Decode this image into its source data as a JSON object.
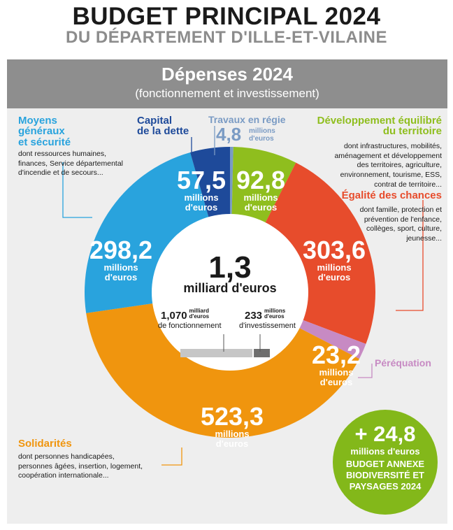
{
  "header": {
    "title": "BUDGET PRINCIPAL 2024",
    "subtitle": "DU DÉPARTEMENT D'ILLE-ET-VILAINE"
  },
  "panel": {
    "title": "Dépenses 2024",
    "subtitle": "(fonctionnement et investissement)"
  },
  "center": {
    "total_value": "1,3",
    "total_unit": "milliard d'euros",
    "fonct_value": "1,070",
    "fonct_unit_line1": "milliard",
    "fonct_unit_line2": "d'euros",
    "fonct_caption": "de fonctionnement",
    "invest_value": "233",
    "invest_unit_line1": "millions",
    "invest_unit_line2": "d'euros",
    "invest_caption": "d'investissement",
    "bar_fonct_fraction": 0.821,
    "bar_invest_fraction": 0.179
  },
  "unit_line1": "millions",
  "unit_line2": "d'euros",
  "labels": {
    "moyens": {
      "title_l1": "Moyens",
      "title_l2": "généraux",
      "title_l3": "et sécurité",
      "desc_l1": "dont ressources humaines,",
      "desc_l2": "finances, Service départemental",
      "desc_l3": "d'incendie et de secours...",
      "value": "298,2"
    },
    "capital": {
      "title_l1": "Capital",
      "title_l2": "de la dette",
      "value": "57,5"
    },
    "travaux": {
      "title": "Travaux en régie",
      "value": "4,8"
    },
    "developpement": {
      "title_l1": "Développement équilibré",
      "title_l2": "du territoire",
      "desc_l1": "dont infrastructures, mobilités,",
      "desc_l2": "aménagement et développement",
      "desc_l3": "des territoires, agriculture,",
      "desc_l4": "environnement, tourisme, ESS,",
      "desc_l5": "contrat de territoire...",
      "value": "92,8"
    },
    "egalite": {
      "title": "Égalité des chances",
      "desc_l1": "dont famille, protection et",
      "desc_l2": "prévention de l'enfance,",
      "desc_l3": "collèges, sport, culture,",
      "desc_l4": "jeunesse...",
      "value": "303,6"
    },
    "perequation": {
      "title": "Péréquation",
      "value": "23,2"
    },
    "solidarites": {
      "title": "Solidarités",
      "desc_l1": "dont personnes handicapées,",
      "desc_l2": "personnes âgées, insertion, logement,",
      "desc_l3": "coopération internationale...",
      "value": "523,3"
    }
  },
  "badge": {
    "value": "+ 24,8",
    "unit": "millions d'euros",
    "line1": "BUDGET ANNEXE",
    "line2": "BIODIVERSITÉ ET",
    "line3": "PAYSAGES 2024"
  },
  "colors": {
    "moyens": "#29a3dd",
    "capital": "#1e4a9a",
    "travaux": "#7a9bc4",
    "developpement": "#8fbe1e",
    "egalite": "#e74c2c",
    "perequation": "#c78ac3",
    "solidarites": "#f0950e",
    "badge": "#83b81a"
  },
  "chart_data": {
    "type": "pie",
    "title": "Dépenses 2024",
    "subtitle": "(fonctionnement et investissement)",
    "unit": "millions d'euros",
    "total": "1,3 milliard d'euros",
    "categories": [
      "Travaux en régie",
      "Développement équilibré du territoire",
      "Égalité des chances",
      "Péréquation",
      "Solidarités",
      "Moyens généraux et sécurité",
      "Capital de la dette"
    ],
    "values": [
      4.8,
      92.8,
      303.6,
      23.2,
      523.3,
      298.2,
      57.5
    ]
  }
}
